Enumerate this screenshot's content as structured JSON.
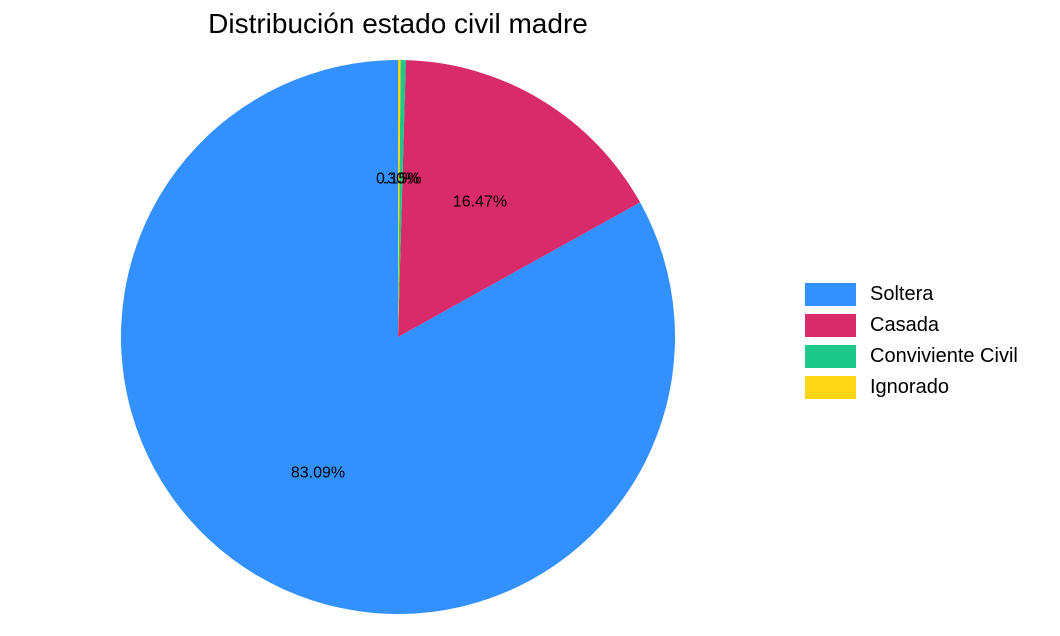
{
  "chart_data": {
    "type": "pie",
    "title": "Distribución estado civil madre",
    "categories": [
      "Soltera",
      "Casada",
      "Conviviente Civil",
      "Ignorado"
    ],
    "values": [
      83.09,
      16.47,
      0.3,
      0.15
    ],
    "labels": [
      "83.09%",
      "16.47%",
      ".30%",
      "0.15%"
    ],
    "colors": [
      "#3391FF",
      "#D92A6A",
      "#1DC88C",
      "#FFD615"
    ],
    "start_angle_deg": 0,
    "direction": "counterclockwise",
    "legend_position": "right",
    "grid": false
  }
}
